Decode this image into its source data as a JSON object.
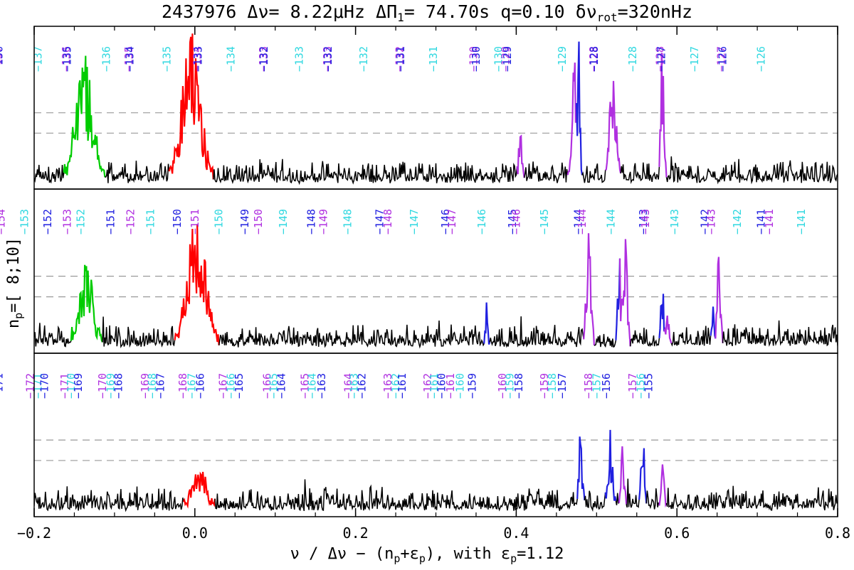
{
  "chart_data": {
    "type": "line",
    "title": {
      "star": "2437976",
      "dnu_label": "Δν=",
      "dnu_value": "8.22",
      "dnu_unit": "μHz",
      "dpi_label": "ΔΠ",
      "dpi_sub": "1",
      "dpi_value": "= 74.70s",
      "q": "q=0.10",
      "drot_label": "δν",
      "drot_sub": "rot",
      "drot_value": "=320nHz"
    },
    "xlabel": {
      "prefix": "ν / Δν − (n",
      "sub1": "p",
      "middle": "+ε",
      "sub2": "p",
      "suffix": "),  with ε",
      "sub3": "p",
      "value": "=1.12"
    },
    "ylabel": {
      "main": "n",
      "sub": "p",
      "range": "=[ 8;10]"
    },
    "xlim": [
      -0.2,
      0.8
    ],
    "xticks": [
      "−0.2",
      "0.0",
      "0.2",
      "0.4",
      "0.6",
      "0.8"
    ],
    "xtick_values": [
      -0.2,
      0.0,
      0.2,
      0.4,
      0.6,
      0.8
    ],
    "colors": {
      "noise": "#000000",
      "l2": "#00cc00",
      "l0": "#ff0000",
      "m_prograde": "#2020e0",
      "m_retro": "#b030e0",
      "m_zero": "#30d8e0"
    },
    "panels": [
      {
        "np": 10,
        "mode_labels": [
          {
            "x": -0.145,
            "text": "139",
            "color": "#30d8e0"
          },
          {
            "x": -0.128,
            "text": "139",
            "color": "#b030e0"
          },
          {
            "x": -0.127,
            "text": "138",
            "color": "#2020e0"
          },
          {
            "x": -0.085,
            "text": "138",
            "color": "#30d8e0"
          },
          {
            "x": -0.045,
            "text": "137",
            "color": "#b030e0"
          },
          {
            "x": -0.044,
            "text": "136",
            "color": "#2020e0"
          },
          {
            "x": 0.005,
            "text": "137",
            "color": "#30d8e0"
          },
          {
            "x": 0.04,
            "text": "136",
            "color": "#b030e0"
          },
          {
            "x": 0.041,
            "text": "135",
            "color": "#2020e0"
          },
          {
            "x": 0.09,
            "text": "136",
            "color": "#30d8e0"
          },
          {
            "x": 0.118,
            "text": "135",
            "color": "#b030e0"
          },
          {
            "x": 0.119,
            "text": "134",
            "color": "#2020e0"
          },
          {
            "x": 0.165,
            "text": "135",
            "color": "#30d8e0"
          },
          {
            "x": 0.203,
            "text": "134",
            "color": "#b030e0"
          },
          {
            "x": 0.204,
            "text": "133",
            "color": "#2020e0"
          },
          {
            "x": 0.245,
            "text": "134",
            "color": "#30d8e0"
          },
          {
            "x": 0.285,
            "text": "133",
            "color": "#b030e0"
          },
          {
            "x": 0.286,
            "text": "132",
            "color": "#2020e0"
          },
          {
            "x": 0.33,
            "text": "133",
            "color": "#30d8e0"
          },
          {
            "x": 0.365,
            "text": "133",
            "color": "#b030e0"
          },
          {
            "x": 0.366,
            "text": "132",
            "color": "#2020e0"
          },
          {
            "x": 0.41,
            "text": "132",
            "color": "#30d8e0"
          },
          {
            "x": 0.455,
            "text": "132",
            "color": "#b030e0"
          },
          {
            "x": 0.456,
            "text": "131",
            "color": "#2020e0"
          },
          {
            "x": 0.497,
            "text": "131",
            "color": "#30d8e0"
          },
          {
            "x": 0.547,
            "text": "130",
            "color": "#b030e0"
          },
          {
            "x": 0.55,
            "text": "130",
            "color": "#2020e0"
          },
          {
            "x": 0.578,
            "text": "130",
            "color": "#30d8e0"
          },
          {
            "x": 0.587,
            "text": "129",
            "color": "#b030e0"
          },
          {
            "x": 0.589,
            "text": "129",
            "color": "#2020e0"
          },
          {
            "x": 0.657,
            "text": "129",
            "color": "#30d8e0"
          },
          {
            "x": 0.696,
            "text": "128",
            "color": "#b030e0"
          },
          {
            "x": 0.697,
            "text": "128",
            "color": "#2020e0"
          },
          {
            "x": 0.745,
            "text": "128",
            "color": "#30d8e0"
          },
          {
            "x": 0.779,
            "text": "128",
            "color": "#b030e0"
          },
          {
            "x": 0.781,
            "text": "127",
            "color": "#2020e0"
          },
          {
            "x": 0.822,
            "text": "127",
            "color": "#30d8e0"
          },
          {
            "x": 0.855,
            "text": "127",
            "color": "#b030e0"
          },
          {
            "x": 0.857,
            "text": "126",
            "color": "#2020e0"
          },
          {
            "x": 0.905,
            "text": "126",
            "color": "#30d8e0"
          }
        ]
      },
      {
        "np": 9,
        "mode_labels": [
          {
            "x": -0.198,
            "text": "156",
            "color": "#b030e0"
          },
          {
            "x": -0.17,
            "text": "155",
            "color": "#30d8e0"
          },
          {
            "x": -0.145,
            "text": "154",
            "color": "#2020e0"
          },
          {
            "x": -0.124,
            "text": "155",
            "color": "#b030e0"
          },
          {
            "x": -0.097,
            "text": "154",
            "color": "#30d8e0"
          },
          {
            "x": -0.067,
            "text": "153",
            "color": "#2020e0"
          },
          {
            "x": -0.041,
            "text": "154",
            "color": "#b030e0"
          },
          {
            "x": -0.012,
            "text": "153",
            "color": "#30d8e0"
          },
          {
            "x": 0.017,
            "text": "152",
            "color": "#2020e0"
          },
          {
            "x": 0.041,
            "text": "153",
            "color": "#b030e0"
          },
          {
            "x": 0.058,
            "text": "152",
            "color": "#30d8e0"
          },
          {
            "x": 0.095,
            "text": "151",
            "color": "#2020e0"
          },
          {
            "x": 0.12,
            "text": "152",
            "color": "#b030e0"
          },
          {
            "x": 0.145,
            "text": "151",
            "color": "#30d8e0"
          },
          {
            "x": 0.178,
            "text": "150",
            "color": "#2020e0"
          },
          {
            "x": 0.2,
            "text": "151",
            "color": "#b030e0"
          },
          {
            "x": 0.23,
            "text": "150",
            "color": "#30d8e0"
          },
          {
            "x": 0.262,
            "text": "149",
            "color": "#2020e0"
          },
          {
            "x": 0.279,
            "text": "150",
            "color": "#b030e0"
          },
          {
            "x": 0.31,
            "text": "149",
            "color": "#30d8e0"
          },
          {
            "x": 0.345,
            "text": "148",
            "color": "#2020e0"
          },
          {
            "x": 0.36,
            "text": "149",
            "color": "#b030e0"
          },
          {
            "x": 0.39,
            "text": "148",
            "color": "#30d8e0"
          },
          {
            "x": 0.43,
            "text": "147",
            "color": "#2020e0"
          },
          {
            "x": 0.44,
            "text": "148",
            "color": "#b030e0"
          },
          {
            "x": 0.473,
            "text": "147",
            "color": "#30d8e0"
          },
          {
            "x": 0.512,
            "text": "146",
            "color": "#2020e0"
          },
          {
            "x": 0.52,
            "text": "147",
            "color": "#b030e0"
          },
          {
            "x": 0.557,
            "text": "146",
            "color": "#30d8e0"
          },
          {
            "x": 0.595,
            "text": "145",
            "color": "#2020e0"
          },
          {
            "x": 0.6,
            "text": "146",
            "color": "#b030e0"
          },
          {
            "x": 0.635,
            "text": "145",
            "color": "#30d8e0"
          },
          {
            "x": 0.677,
            "text": "144",
            "color": "#2020e0"
          },
          {
            "x": 0.682,
            "text": "144",
            "color": "#b030e0"
          },
          {
            "x": 0.718,
            "text": "144",
            "color": "#30d8e0"
          },
          {
            "x": 0.758,
            "text": "143",
            "color": "#2020e0"
          },
          {
            "x": 0.761,
            "text": "143",
            "color": "#b030e0"
          },
          {
            "x": 0.797,
            "text": "143",
            "color": "#30d8e0"
          },
          {
            "x": 0.835,
            "text": "142",
            "color": "#2020e0"
          },
          {
            "x": 0.843,
            "text": "143",
            "color": "#b030e0"
          },
          {
            "x": 0.875,
            "text": "142",
            "color": "#30d8e0"
          },
          {
            "x": 0.905,
            "text": "141",
            "color": "#2020e0"
          },
          {
            "x": 0.915,
            "text": "141",
            "color": "#b030e0"
          },
          {
            "x": 0.955,
            "text": "141",
            "color": "#30d8e0"
          }
        ]
      },
      {
        "np": 8,
        "mode_labels": [
          {
            "x": -0.197,
            "text": "174",
            "color": "#2020e0"
          },
          {
            "x": -0.185,
            "text": "175",
            "color": "#b030e0"
          },
          {
            "x": -0.178,
            "text": "174",
            "color": "#30d8e0"
          },
          {
            "x": -0.165,
            "text": "173",
            "color": "#2020e0"
          },
          {
            "x": -0.152,
            "text": "172",
            "color": "#2020e0"
          },
          {
            "x": -0.118,
            "text": "174",
            "color": "#b030e0"
          },
          {
            "x": -0.108,
            "text": "173",
            "color": "#30d8e0"
          },
          {
            "x": -0.1,
            "text": "172",
            "color": "#2020e0"
          },
          {
            "x": -0.088,
            "text": "171",
            "color": "#2020e0"
          },
          {
            "x": -0.067,
            "text": "173",
            "color": "#b030e0"
          },
          {
            "x": -0.056,
            "text": "172",
            "color": "#30d8e0"
          },
          {
            "x": -0.044,
            "text": "171",
            "color": "#2020e0"
          },
          {
            "x": -0.005,
            "text": "172",
            "color": "#b030e0"
          },
          {
            "x": 0.005,
            "text": "171",
            "color": "#30d8e0"
          },
          {
            "x": 0.013,
            "text": "170",
            "color": "#2020e0"
          },
          {
            "x": 0.038,
            "text": "171",
            "color": "#b030e0"
          },
          {
            "x": 0.046,
            "text": "170",
            "color": "#30d8e0"
          },
          {
            "x": 0.055,
            "text": "169",
            "color": "#2020e0"
          },
          {
            "x": 0.085,
            "text": "170",
            "color": "#b030e0"
          },
          {
            "x": 0.095,
            "text": "169",
            "color": "#30d8e0"
          },
          {
            "x": 0.105,
            "text": "168",
            "color": "#2020e0"
          },
          {
            "x": 0.138,
            "text": "169",
            "color": "#b030e0"
          },
          {
            "x": 0.147,
            "text": "168",
            "color": "#30d8e0"
          },
          {
            "x": 0.157,
            "text": "167",
            "color": "#2020e0"
          },
          {
            "x": 0.185,
            "text": "168",
            "color": "#b030e0"
          },
          {
            "x": 0.196,
            "text": "167",
            "color": "#30d8e0"
          },
          {
            "x": 0.207,
            "text": "166",
            "color": "#2020e0"
          },
          {
            "x": 0.235,
            "text": "167",
            "color": "#b030e0"
          },
          {
            "x": 0.245,
            "text": "166",
            "color": "#30d8e0"
          },
          {
            "x": 0.255,
            "text": "165",
            "color": "#2020e0"
          },
          {
            "x": 0.29,
            "text": "166",
            "color": "#b030e0"
          },
          {
            "x": 0.298,
            "text": "165",
            "color": "#30d8e0"
          },
          {
            "x": 0.308,
            "text": "164",
            "color": "#2020e0"
          },
          {
            "x": 0.337,
            "text": "165",
            "color": "#b030e0"
          },
          {
            "x": 0.346,
            "text": "164",
            "color": "#30d8e0"
          },
          {
            "x": 0.358,
            "text": "163",
            "color": "#2020e0"
          },
          {
            "x": 0.391,
            "text": "164",
            "color": "#b030e0"
          },
          {
            "x": 0.398,
            "text": "163",
            "color": "#30d8e0"
          },
          {
            "x": 0.408,
            "text": "162",
            "color": "#2020e0"
          },
          {
            "x": 0.44,
            "text": "163",
            "color": "#b030e0"
          },
          {
            "x": 0.45,
            "text": "162",
            "color": "#30d8e0"
          },
          {
            "x": 0.458,
            "text": "161",
            "color": "#2020e0"
          },
          {
            "x": 0.49,
            "text": "162",
            "color": "#b030e0"
          },
          {
            "x": 0.498,
            "text": "161",
            "color": "#30d8e0"
          },
          {
            "x": 0.507,
            "text": "160",
            "color": "#2020e0"
          },
          {
            "x": 0.518,
            "text": "161",
            "color": "#b030e0"
          },
          {
            "x": 0.53,
            "text": "160",
            "color": "#30d8e0"
          },
          {
            "x": 0.545,
            "text": "159",
            "color": "#2020e0"
          },
          {
            "x": 0.583,
            "text": "160",
            "color": "#b030e0"
          },
          {
            "x": 0.592,
            "text": "159",
            "color": "#30d8e0"
          },
          {
            "x": 0.603,
            "text": "158",
            "color": "#2020e0"
          },
          {
            "x": 0.635,
            "text": "159",
            "color": "#b030e0"
          },
          {
            "x": 0.645,
            "text": "158",
            "color": "#30d8e0"
          },
          {
            "x": 0.657,
            "text": "157",
            "color": "#2020e0"
          },
          {
            "x": 0.69,
            "text": "158",
            "color": "#b030e0"
          },
          {
            "x": 0.7,
            "text": "157",
            "color": "#30d8e0"
          },
          {
            "x": 0.712,
            "text": "156",
            "color": "#2020e0"
          },
          {
            "x": 0.745,
            "text": "157",
            "color": "#b030e0"
          },
          {
            "x": 0.755,
            "text": "156",
            "color": "#30d8e0"
          },
          {
            "x": 0.765,
            "text": "155",
            "color": "#2020e0"
          }
        ]
      }
    ]
  }
}
